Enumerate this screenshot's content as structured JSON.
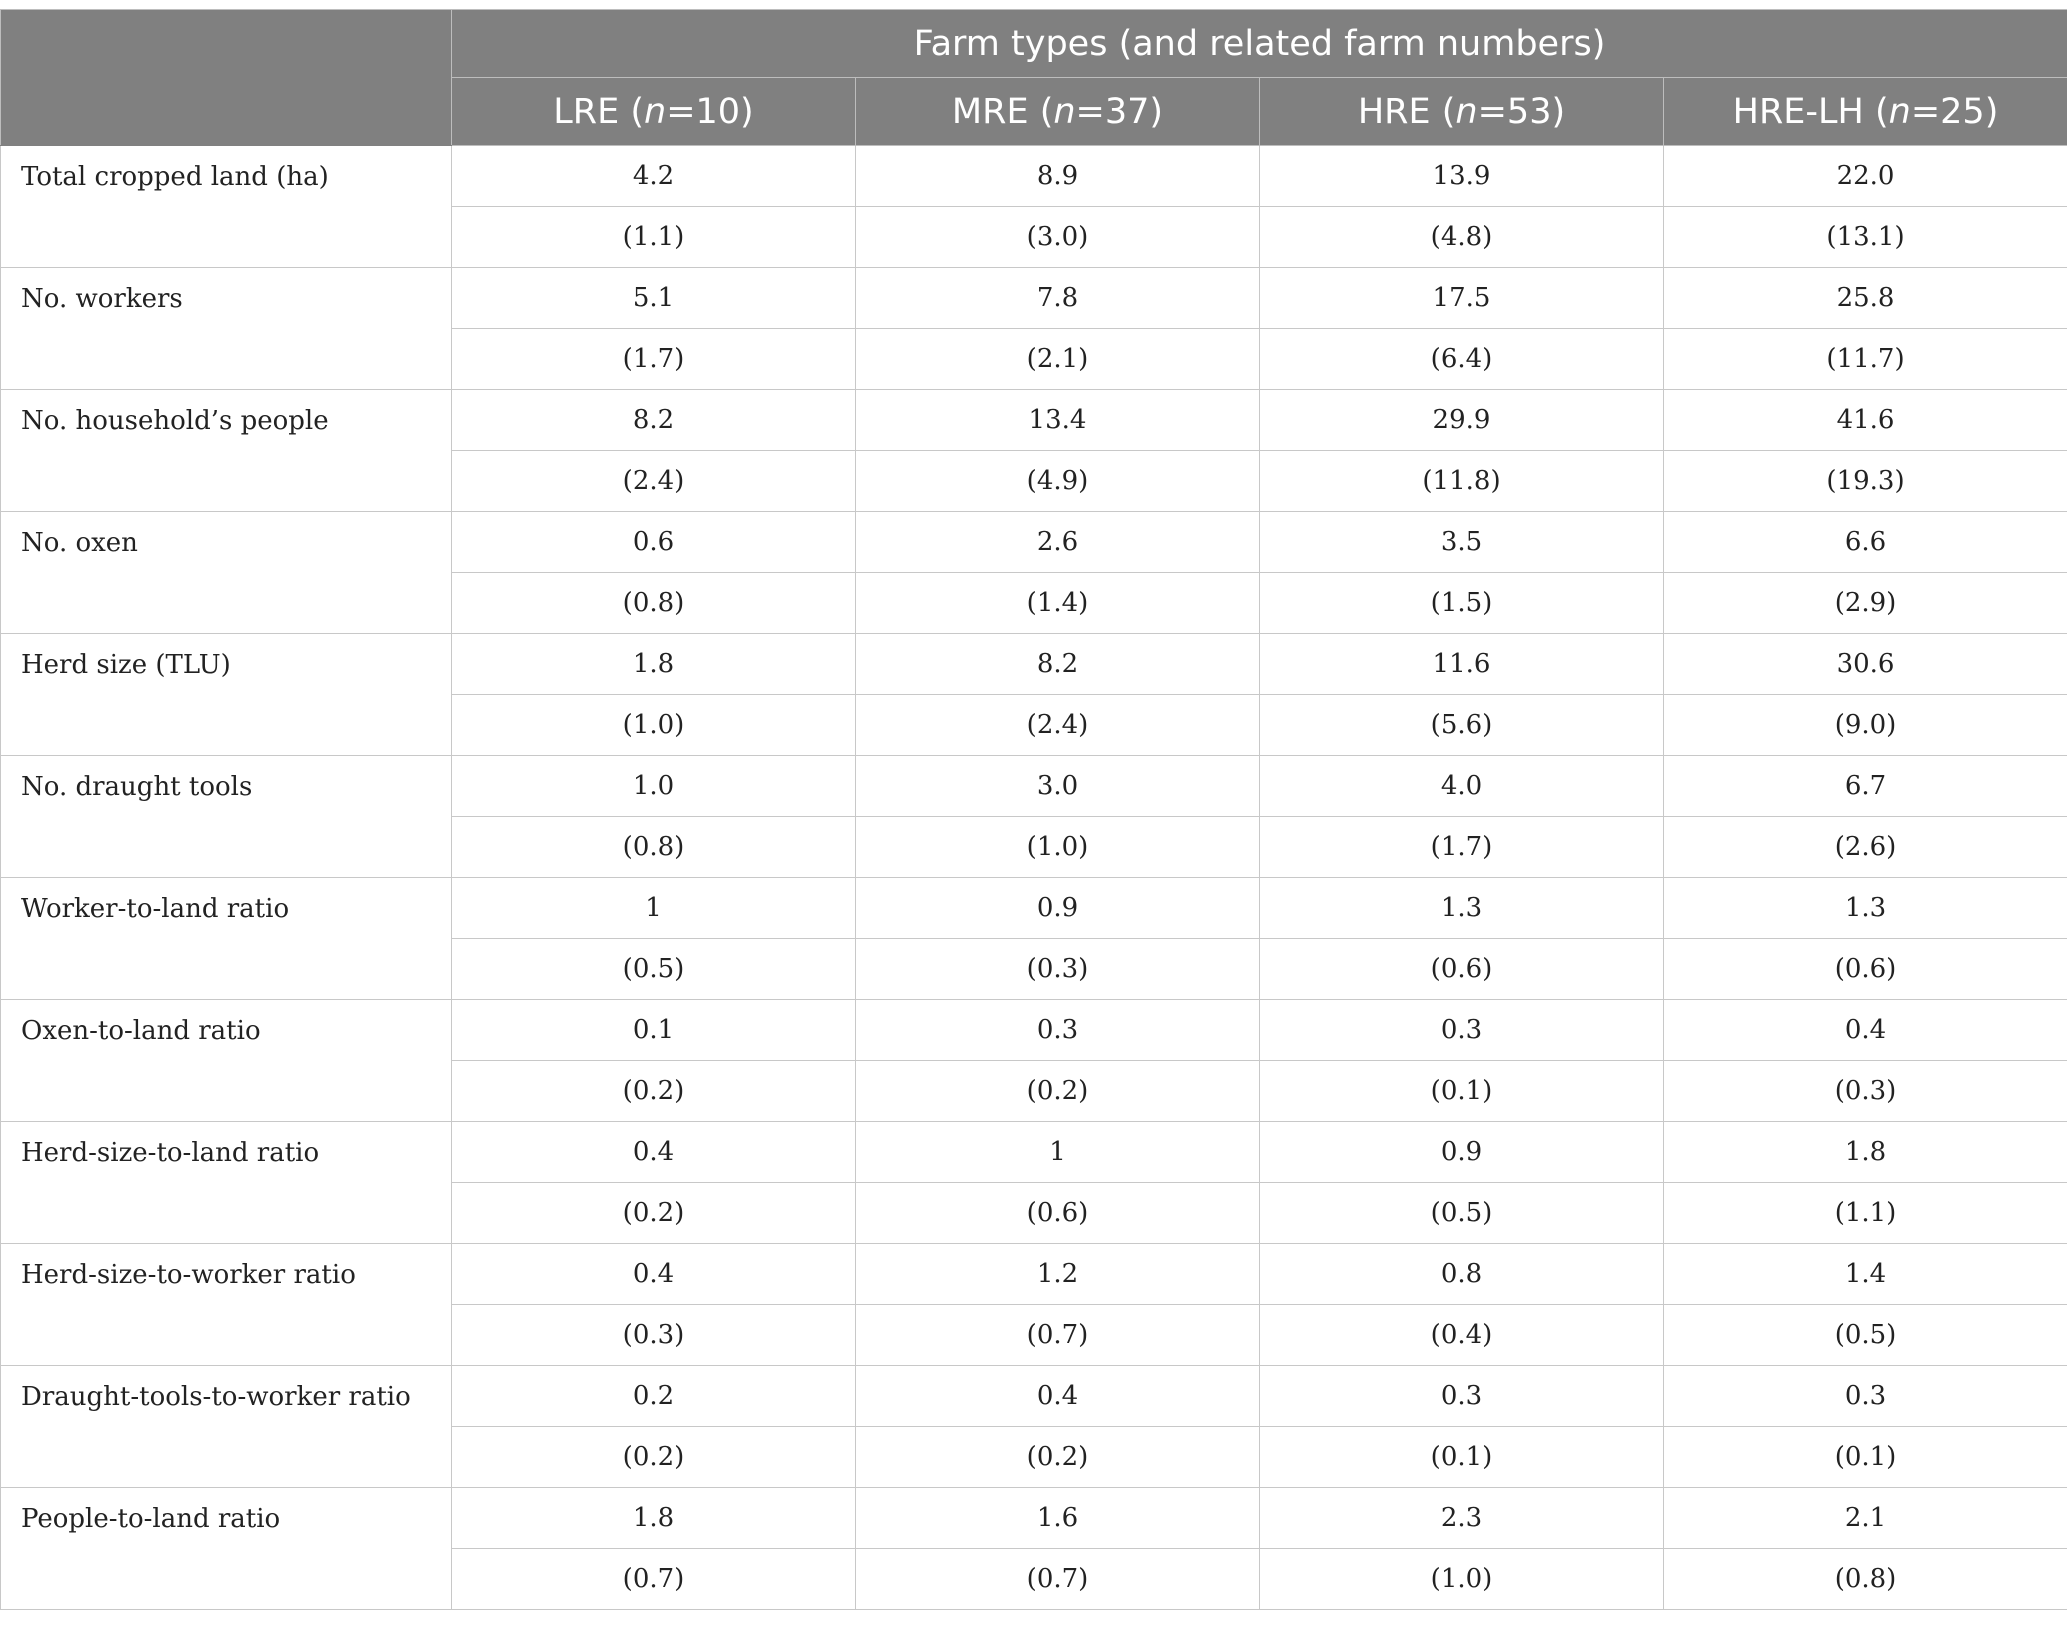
{
  "table": {
    "group_header": "Farm types (and related farm numbers)",
    "columns": [
      {
        "name": "LRE",
        "n_prefix": " (",
        "n_var": "n",
        "n_value": "=10)"
      },
      {
        "name": "MRE",
        "n_prefix": " (",
        "n_var": "n",
        "n_value": "=37)"
      },
      {
        "name": "HRE",
        "n_prefix": " (",
        "n_var": "n",
        "n_value": "=53)"
      },
      {
        "name": "HRE-LH",
        "n_prefix": " (",
        "n_var": "n",
        "n_value": "=25)"
      }
    ],
    "rows": [
      {
        "label": "Total cropped land (ha)",
        "means": [
          "4.2",
          "8.9",
          "13.9",
          "22.0"
        ],
        "sds": [
          "(1.1)",
          "(3.0)",
          "(4.8)",
          "(13.1)"
        ]
      },
      {
        "label": "No. workers",
        "means": [
          "5.1",
          "7.8",
          "17.5",
          "25.8"
        ],
        "sds": [
          "(1.7)",
          "(2.1)",
          "(6.4)",
          "(11.7)"
        ]
      },
      {
        "label": "No. household’s people",
        "means": [
          "8.2",
          "13.4",
          "29.9",
          "41.6"
        ],
        "sds": [
          "(2.4)",
          "(4.9)",
          "(11.8)",
          "(19.3)"
        ]
      },
      {
        "label": "No. oxen",
        "means": [
          "0.6",
          "2.6",
          "3.5",
          "6.6"
        ],
        "sds": [
          "(0.8)",
          "(1.4)",
          "(1.5)",
          "(2.9)"
        ]
      },
      {
        "label": "Herd size (TLU)",
        "means": [
          "1.8",
          "8.2",
          "11.6",
          "30.6"
        ],
        "sds": [
          "(1.0)",
          "(2.4)",
          "(5.6)",
          "(9.0)"
        ]
      },
      {
        "label": "No. draught tools",
        "means": [
          "1.0",
          "3.0",
          "4.0",
          "6.7"
        ],
        "sds": [
          "(0.8)",
          "(1.0)",
          "(1.7)",
          "(2.6)"
        ]
      },
      {
        "label": "Worker-to-land ratio",
        "means": [
          "1",
          "0.9",
          "1.3",
          "1.3"
        ],
        "sds": [
          "(0.5)",
          "(0.3)",
          "(0.6)",
          "(0.6)"
        ]
      },
      {
        "label": "Oxen-to-land ratio",
        "means": [
          "0.1",
          "0.3",
          "0.3",
          "0.4"
        ],
        "sds": [
          "(0.2)",
          "(0.2)",
          "(0.1)",
          "(0.3)"
        ]
      },
      {
        "label": "Herd-size-to-land ratio",
        "means": [
          "0.4",
          "1",
          "0.9",
          "1.8"
        ],
        "sds": [
          "(0.2)",
          "(0.6)",
          "(0.5)",
          "(1.1)"
        ]
      },
      {
        "label": "Herd-size-to-worker ratio",
        "means": [
          "0.4",
          "1.2",
          "0.8",
          "1.4"
        ],
        "sds": [
          "(0.3)",
          "(0.7)",
          "(0.4)",
          "(0.5)"
        ]
      },
      {
        "label": "Draught-tools-to-worker ratio",
        "means": [
          "0.2",
          "0.4",
          "0.3",
          "0.3"
        ],
        "sds": [
          "(0.2)",
          "(0.2)",
          "(0.1)",
          "(0.1)"
        ]
      },
      {
        "label": "People-to-land ratio",
        "means": [
          "1.8",
          "1.6",
          "2.3",
          "2.1"
        ],
        "sds": [
          "(0.7)",
          "(0.7)",
          "(1.0)",
          "(0.8)"
        ]
      }
    ]
  },
  "colors": {
    "header_bg": "#808080",
    "header_text": "#ffffff",
    "grid": "#c8c8c8",
    "body_text": "#222222"
  }
}
